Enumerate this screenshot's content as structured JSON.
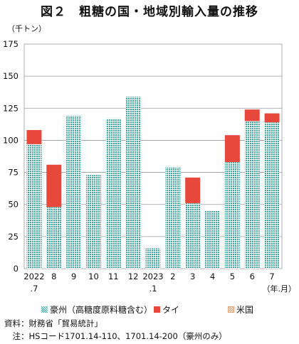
{
  "chart_data": {
    "type": "bar",
    "stacked": true,
    "title": "図２　粗糖の国・地域別輸入量の推移",
    "y_unit": "（千トン）",
    "x_unit": "（年.月）",
    "ylim": [
      0,
      175
    ],
    "y_ticks": [
      "0",
      "25",
      "50",
      "75",
      "100",
      "125",
      "150",
      "175"
    ],
    "categories": [
      {
        "line1": "2022",
        "line2": ".7"
      },
      {
        "line1": "8",
        "line2": ""
      },
      {
        "line1": "9",
        "line2": ""
      },
      {
        "line1": "10",
        "line2": ""
      },
      {
        "line1": "11",
        "line2": ""
      },
      {
        "line1": "12",
        "line2": ""
      },
      {
        "line1": "2023",
        "line2": ".1"
      },
      {
        "line1": "2",
        "line2": ""
      },
      {
        "line1": "3",
        "line2": ""
      },
      {
        "line1": "4",
        "line2": ""
      },
      {
        "line1": "5",
        "line2": ""
      },
      {
        "line1": "6",
        "line2": ""
      },
      {
        "line1": "7",
        "line2": ""
      }
    ],
    "series": [
      {
        "name": "豪州（高糖度原料糖含む）",
        "color": "#3aaaa3",
        "pattern": "dotted",
        "values": [
          97,
          48,
          119,
          73,
          117,
          134,
          16,
          79,
          51,
          45,
          83,
          115,
          114
        ]
      },
      {
        "name": "タイ",
        "color": "#e8483b",
        "pattern": "solid",
        "values": [
          11,
          33,
          0,
          0,
          0,
          0,
          0,
          0,
          20,
          0,
          21,
          9,
          7
        ]
      },
      {
        "name": "米国",
        "color": "#e8a47a",
        "pattern": "dotted",
        "values": [
          0,
          0,
          0,
          0,
          0,
          0,
          0,
          0,
          0,
          0,
          0,
          0,
          0
        ]
      }
    ],
    "grid": true,
    "legend_position": "bottom"
  },
  "notes": {
    "source": "資料：財務省「貿易統計」",
    "note": "　注：HSコード1701.14-110、1701.14-200（豪州のみ）"
  }
}
